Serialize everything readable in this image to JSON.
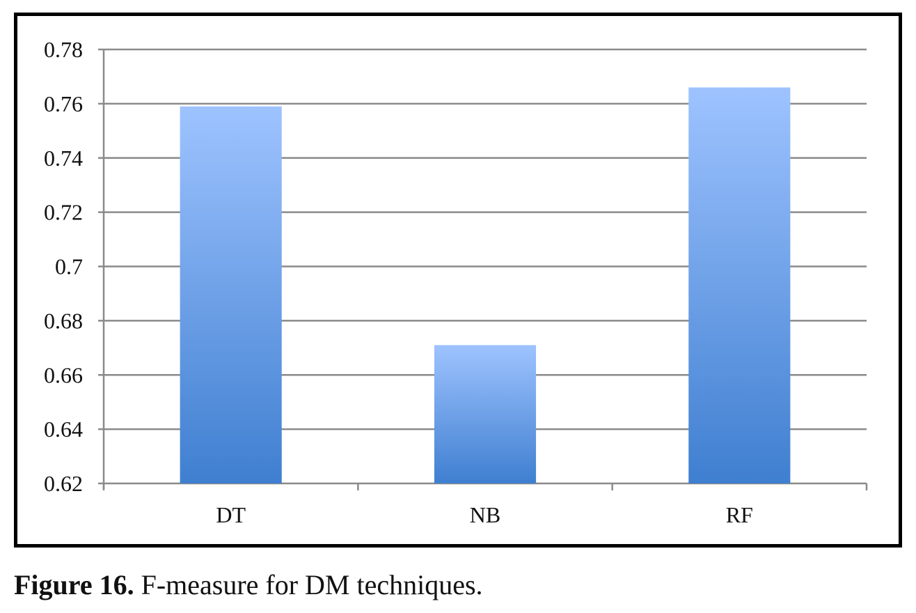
{
  "caption": {
    "label": "Figure 16.",
    "text": "F-measure for DM techniques."
  },
  "colors": {
    "bar_top": "#9ec3ff",
    "bar_bottom": "#3f7fd0",
    "gridline": "#8a8a8a",
    "frame": "#000000"
  },
  "chart_data": {
    "type": "bar",
    "categories": [
      "DT",
      "NB",
      "RF"
    ],
    "values": [
      0.759,
      0.671,
      0.766
    ],
    "ylim": [
      0.62,
      0.78
    ],
    "yticks": [
      0.62,
      0.64,
      0.66,
      0.68,
      0.7,
      0.72,
      0.74,
      0.76,
      0.78
    ],
    "ytick_labels": [
      "0.62",
      "0.64",
      "0.66",
      "0.68",
      "0.7",
      "0.72",
      "0.74",
      "0.76",
      "0.78"
    ],
    "grid": true,
    "legend": "none",
    "title": "",
    "xlabel": "",
    "ylabel": ""
  }
}
